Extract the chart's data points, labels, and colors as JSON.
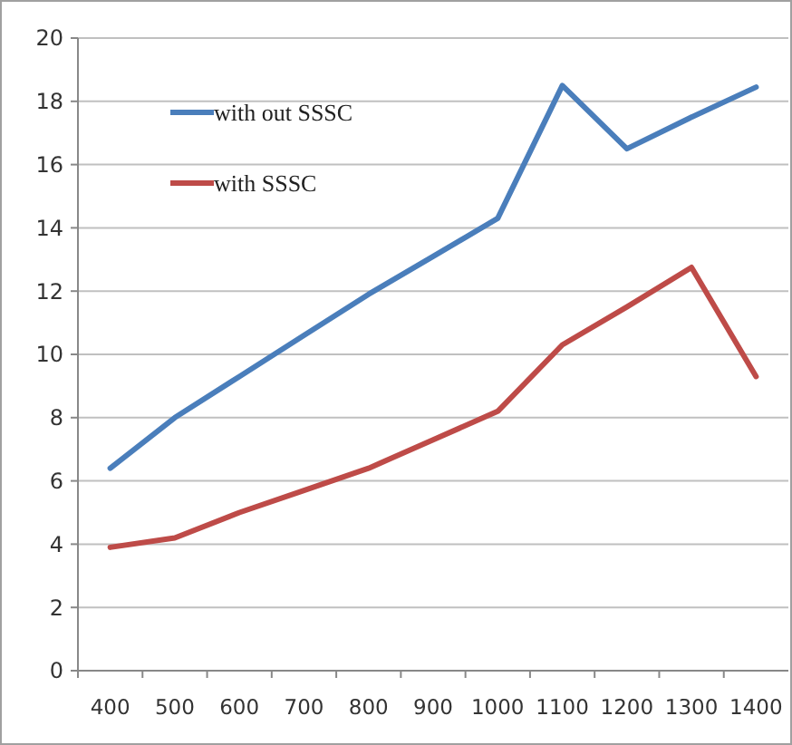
{
  "chart_data": {
    "type": "line",
    "categories": [
      "400",
      "500",
      "600",
      "700",
      "800",
      "900",
      "1000",
      "1100",
      "1200",
      "1300",
      "1400"
    ],
    "series": [
      {
        "name": "with out SSSC",
        "color": "#4a7ebb",
        "values": [
          6.4,
          8.0,
          9.3,
          10.6,
          11.9,
          13.1,
          14.3,
          18.5,
          16.5,
          17.5,
          18.45
        ]
      },
      {
        "name": "with SSSC",
        "color": "#be4b48",
        "values": [
          3.9,
          4.2,
          5.0,
          5.7,
          6.4,
          7.3,
          8.2,
          10.3,
          11.5,
          12.75,
          9.3
        ]
      }
    ],
    "ylim": [
      0,
      20
    ],
    "yticks": [
      0,
      2,
      4,
      6,
      8,
      10,
      12,
      14,
      16,
      18,
      20
    ],
    "grid": "y",
    "legend": "top left",
    "marker": "none",
    "line_style": "solid"
  }
}
